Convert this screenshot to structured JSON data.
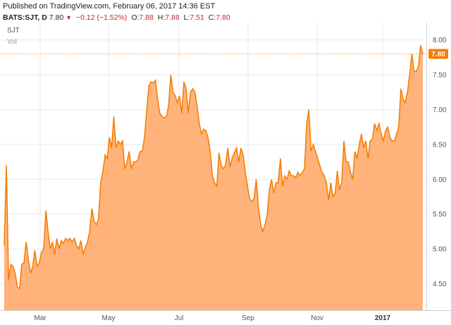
{
  "header": {
    "published": "Published on TradingView.com, February 06, 2017 14:36 EST",
    "symbol_interval": "BATS:SJT, D",
    "last": "7.80",
    "change": "−0.12 (−1.52%)",
    "open_label": "O:",
    "open": "7.88",
    "high_label": "H:",
    "high": "7.88",
    "low_label": "L:",
    "low": "7.51",
    "close_label": "C:",
    "close": "7.80"
  },
  "chart_data": {
    "type": "area",
    "symbol": "SJT",
    "volume_label": "Vol",
    "y_ticks": [
      4.5,
      5.0,
      5.5,
      6.0,
      6.5,
      7.0,
      7.5,
      8.0
    ],
    "y_tick_labels": [
      "4.50",
      "5.00",
      "5.50",
      "6.00",
      "6.50",
      "7.00",
      "7.50",
      "8.00"
    ],
    "ylim": [
      4.12,
      8.25
    ],
    "x_labels": [
      "Mar",
      "May",
      "Jul",
      "Sep",
      "Nov",
      "2017"
    ],
    "last_value_label": "7.80",
    "colors": {
      "line": "#f57c00",
      "fill": "#ffb27a",
      "last_marker": "#f57c00",
      "grid": "#e9e9e9"
    },
    "values": [
      5.05,
      6.2,
      4.55,
      4.78,
      4.75,
      4.65,
      4.45,
      4.43,
      4.78,
      4.8,
      5.1,
      4.85,
      4.65,
      4.75,
      4.98,
      4.75,
      4.8,
      4.95,
      5.0,
      5.55,
      5.25,
      5.0,
      5.1,
      4.92,
      5.15,
      5.0,
      5.12,
      5.08,
      5.15,
      5.12,
      5.15,
      5.1,
      5.15,
      5.05,
      5.0,
      5.12,
      4.92,
      5.02,
      5.1,
      5.25,
      5.58,
      5.4,
      5.35,
      5.42,
      5.95,
      6.1,
      6.35,
      6.3,
      6.6,
      6.45,
      6.9,
      6.45,
      6.55,
      6.5,
      6.55,
      6.15,
      6.25,
      6.4,
      6.15,
      6.25,
      6.25,
      6.28,
      6.4,
      6.4,
      6.6,
      6.98,
      7.35,
      7.4,
      7.38,
      7.42,
      7.15,
      6.95,
      6.9,
      6.88,
      6.9,
      7.05,
      7.5,
      7.25,
      7.2,
      7.1,
      7.2,
      6.95,
      7.4,
      7.3,
      6.95,
      7.25,
      7.3,
      7.25,
      7.05,
      6.8,
      6.65,
      6.72,
      6.7,
      6.6,
      6.4,
      6.05,
      5.95,
      5.9,
      6.38,
      6.2,
      6.15,
      6.2,
      6.45,
      6.18,
      6.3,
      6.38,
      6.45,
      6.25,
      6.45,
      6.35,
      6.1,
      5.9,
      5.72,
      5.68,
      5.72,
      6.0,
      5.6,
      5.35,
      5.25,
      5.35,
      5.5,
      5.85,
      6.0,
      5.8,
      5.95,
      5.95,
      6.3,
      5.9,
      6.05,
      6.0,
      6.12,
      6.05,
      6.05,
      6.02,
      6.1,
      6.05,
      6.1,
      6.15,
      6.8,
      7.0,
      6.4,
      6.5,
      6.4,
      6.3,
      6.2,
      6.1,
      6.05,
      5.95,
      5.7,
      5.95,
      5.75,
      5.8,
      6.12,
      5.85,
      5.95,
      6.55,
      6.25,
      6.25,
      6.1,
      6.0,
      6.4,
      6.3,
      6.5,
      6.65,
      6.45,
      6.55,
      6.3,
      6.55,
      6.58,
      6.8,
      6.7,
      6.8,
      6.65,
      6.55,
      6.7,
      6.75,
      6.6,
      6.55,
      6.55,
      6.65,
      6.75,
      7.3,
      7.15,
      7.1,
      7.25,
      7.5,
      7.8,
      7.55,
      7.55,
      7.62,
      7.92,
      7.8
    ]
  }
}
